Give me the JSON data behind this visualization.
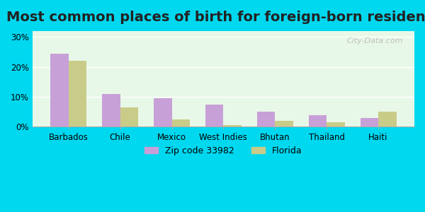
{
  "title": "Most common places of birth for foreign-born residents",
  "categories": [
    "Barbados",
    "Chile",
    "Mexico",
    "West Indies",
    "Bhutan",
    "Thailand",
    "Haiti"
  ],
  "zip_values": [
    24.5,
    11.0,
    9.5,
    7.5,
    5.0,
    4.0,
    3.0
  ],
  "fl_values": [
    22.0,
    6.5,
    2.5,
    0.5,
    2.0,
    1.5,
    5.0
  ],
  "zip_color": "#c8a0d8",
  "fl_color": "#c8cc88",
  "zip_label": "Zip code 33982",
  "fl_label": "Florida",
  "yticks": [
    0,
    10,
    20,
    30
  ],
  "ylim": [
    0,
    32
  ],
  "bg_outer": "#00d8f0",
  "bg_plot_top": "#e8f8e8",
  "watermark": "City-Data.com",
  "title_fontsize": 14
}
